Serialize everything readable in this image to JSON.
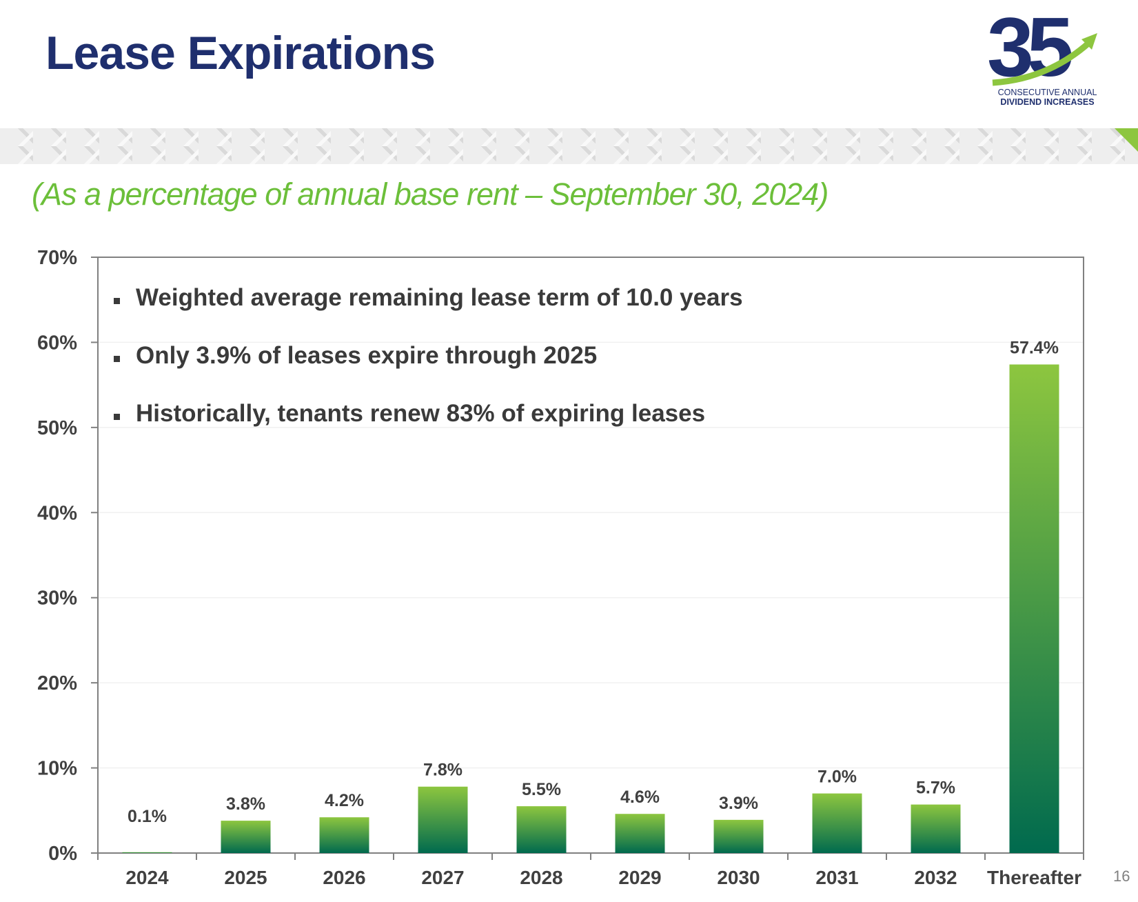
{
  "slide": {
    "title": "Lease Expirations",
    "subtitle": "(As a percentage of annual base rent – September 30, 2024)",
    "page_number": "16"
  },
  "logo": {
    "number": "35",
    "caption_line1": "CONSECUTIVE ANNUAL",
    "caption_line2": "DIVIDEND INCREASES",
    "colors": {
      "navy": "#1f2f6e",
      "green": "#8dc63f"
    }
  },
  "bullets": [
    "Weighted average remaining lease term of 10.0 years",
    "Only 3.9% of leases expire through 2025",
    "Historically, tenants renew 83% of expiring leases"
  ],
  "chart_data": {
    "type": "bar",
    "categories": [
      "2024",
      "2025",
      "2026",
      "2027",
      "2028",
      "2029",
      "2030",
      "2031",
      "2032",
      "Thereafter"
    ],
    "values": [
      0.1,
      3.8,
      4.2,
      7.8,
      5.5,
      4.6,
      3.9,
      7.0,
      5.7,
      57.4
    ],
    "data_labels": [
      "0.1%",
      "3.8%",
      "4.2%",
      "7.8%",
      "5.5%",
      "4.6%",
      "3.9%",
      "7.0%",
      "5.7%",
      "57.4%"
    ],
    "ylim": [
      0,
      70
    ],
    "yticks": [
      0,
      10,
      20,
      30,
      40,
      50,
      60,
      70
    ],
    "ytick_labels": [
      "0%",
      "10%",
      "20%",
      "30%",
      "40%",
      "50%",
      "60%",
      "70%"
    ],
    "grid": true,
    "bar_gradient": {
      "top": "#8dc63f",
      "bottom": "#006a4e"
    }
  }
}
